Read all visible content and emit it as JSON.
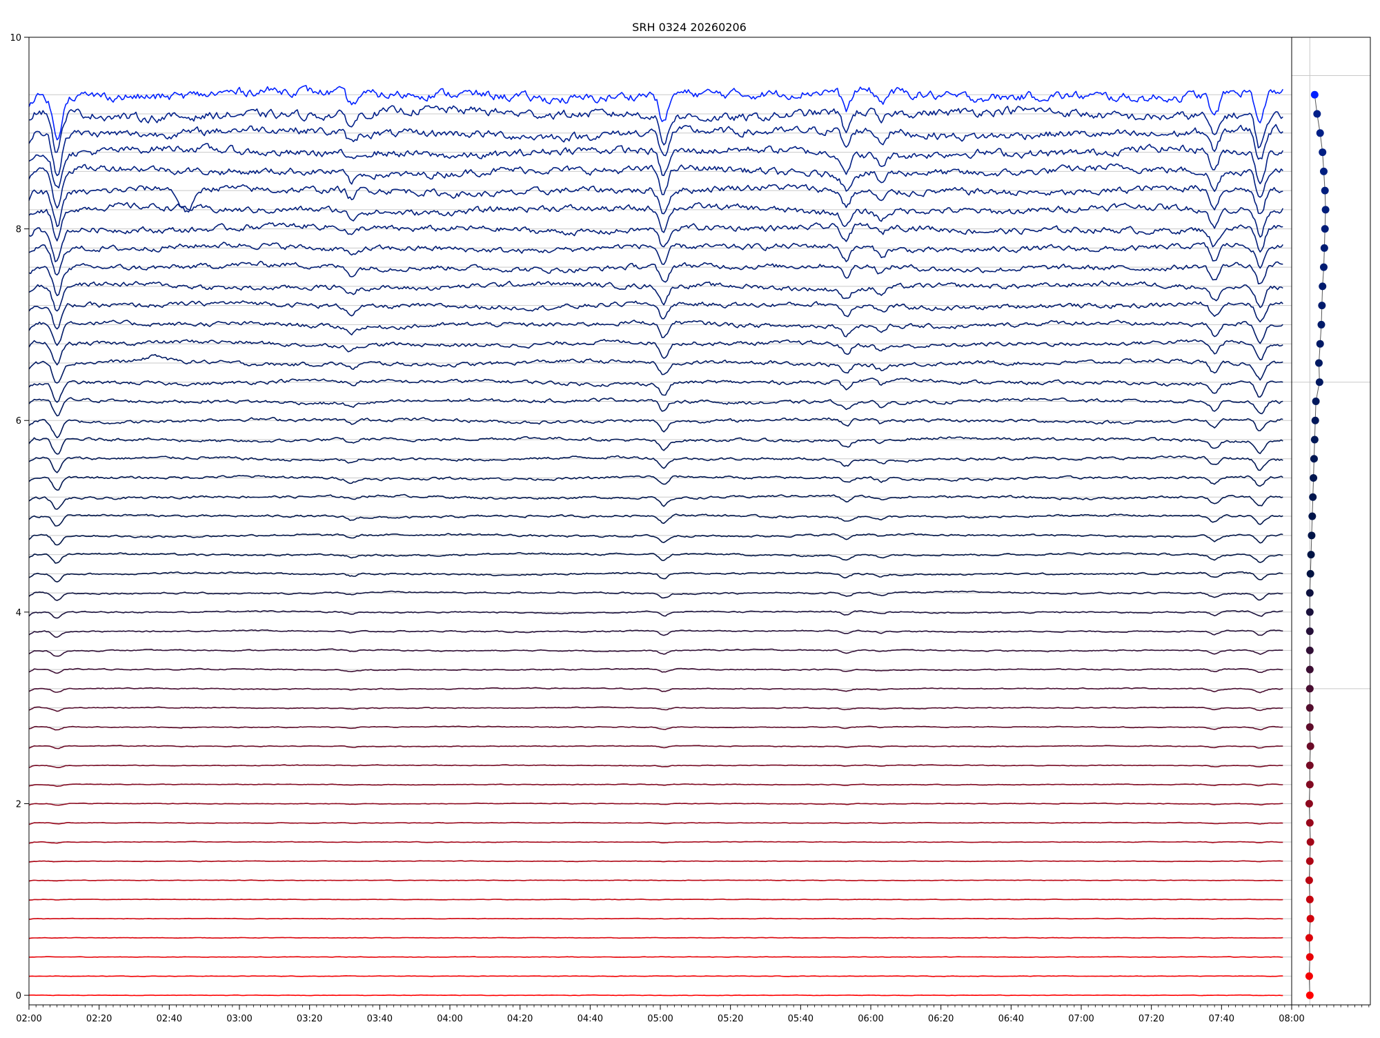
{
  "chart_data": {
    "type": "line",
    "title": "SRH 0324 20260206",
    "xlabel": "",
    "ylabel": "",
    "x_range": [
      "02:00",
      "08:00"
    ],
    "ylim": [
      -0.1,
      10
    ],
    "grid": true,
    "y_ticks": [
      "0",
      "2",
      "4",
      "6",
      "8",
      "10"
    ],
    "x_ticks": [
      "02:00",
      "02:20",
      "02:40",
      "03:00",
      "03:20",
      "03:40",
      "04:00",
      "04:20",
      "04:40",
      "05:00",
      "05:20",
      "05:40",
      "06:00",
      "06:20",
      "06:40",
      "07:00",
      "07:20",
      "07:40",
      "08:00"
    ],
    "series_count": 48,
    "channel_baselines": [
      0.0,
      0.2,
      0.4,
      0.6,
      0.8,
      1.0,
      1.2,
      1.4,
      1.6,
      1.8,
      2.0,
      2.2,
      2.4,
      2.6,
      2.8,
      3.0,
      3.2,
      3.4,
      3.6,
      3.8,
      4.0,
      4.2,
      4.4,
      4.6,
      4.8,
      5.0,
      5.2,
      5.4,
      5.6,
      5.8,
      6.0,
      6.2,
      6.4,
      6.6,
      6.8,
      7.0,
      7.2,
      7.4,
      7.6,
      7.8,
      8.0,
      8.2,
      8.4,
      8.6,
      8.8,
      9.0,
      9.2,
      9.4
    ],
    "channel_colors": [
      "#ff0000",
      "#f30003",
      "#e80106",
      "#dc0209",
      "#d1030c",
      "#c5040f",
      "#ba0512",
      "#ae0615",
      "#a30618",
      "#98071b",
      "#8c081e",
      "#810921",
      "#750a24",
      "#6a0b27",
      "#5e0c2a",
      "#530d2d",
      "#480d30",
      "#3c0e33",
      "#310f36",
      "#251039",
      "#1a113c",
      "#0e123f",
      "#031342",
      "#001444",
      "#001447",
      "#00154a",
      "#00154d",
      "#001650",
      "#001653",
      "#001756",
      "#001759",
      "#00185c",
      "#00185f",
      "#001962",
      "#001965",
      "#001a68",
      "#001a6b",
      "#001b6e",
      "#001b71",
      "#001c74",
      "#001c77",
      "#001d7a",
      "#001d7d",
      "#001e80",
      "#001e83",
      "#001f86",
      "#001f89",
      "#0020ff"
    ],
    "common_events": [
      {
        "time": "02:08",
        "depth": 0.45
      },
      {
        "time": "03:32",
        "depth": 0.12
      },
      {
        "time": "05:01",
        "depth": 0.3
      },
      {
        "time": "05:53",
        "depth": 0.2
      },
      {
        "time": "06:03",
        "depth": 0.12
      },
      {
        "time": "07:51",
        "depth": 0.35
      },
      {
        "time": "07:38",
        "depth": 0.25
      }
    ],
    "isolated_events": [
      {
        "channel": 42,
        "time": "02:45",
        "depth": 0.25
      },
      {
        "channel": 33,
        "time": "02:36",
        "depth": -0.06
      }
    ],
    "side_panel": {
      "type": "scatter",
      "x": [
        0.0,
        -0.001,
        0.0,
        -0.001,
        0.001,
        0.0,
        -0.001,
        0.0,
        0.001,
        0.0,
        -0.001,
        0.0,
        0.0,
        0.001,
        0.0,
        0.0,
        0.0,
        0.0,
        0.0,
        0.0,
        0.0,
        0.0,
        0.001,
        0.002,
        0.003,
        0.004,
        0.005,
        0.006,
        0.007,
        0.008,
        0.009,
        0.01,
        0.016,
        0.015,
        0.017,
        0.019,
        0.02,
        0.021,
        0.023,
        0.024,
        0.025,
        0.026,
        0.025,
        0.023,
        0.021,
        0.017,
        0.012,
        0.008
      ],
      "y": [
        0.0,
        0.2,
        0.4,
        0.6,
        0.8,
        1.0,
        1.2,
        1.4,
        1.6,
        1.8,
        2.0,
        2.2,
        2.4,
        2.6,
        2.8,
        3.0,
        3.2,
        3.4,
        3.6,
        3.8,
        4.0,
        4.2,
        4.4,
        4.6,
        4.8,
        5.0,
        5.2,
        5.4,
        5.6,
        5.8,
        6.0,
        6.2,
        6.4,
        6.6,
        6.8,
        7.0,
        7.2,
        7.4,
        7.6,
        7.8,
        8.0,
        8.2,
        8.4,
        8.6,
        8.8,
        9.0,
        9.2,
        9.4
      ],
      "xlim": [
        -0.03,
        0.1
      ],
      "grid": true
    }
  }
}
